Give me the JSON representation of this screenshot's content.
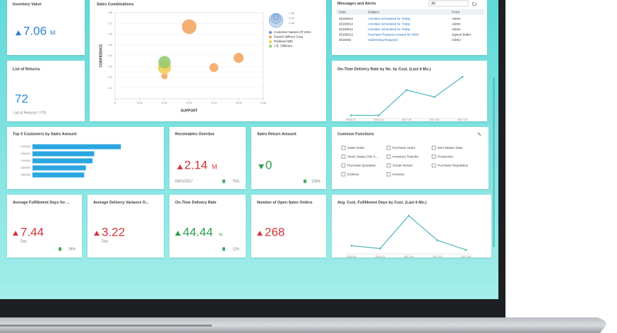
{
  "tiles": {
    "inventory_value": {
      "title": "Inventory Value",
      "value": "7.06",
      "unit": "M"
    },
    "list_of_returns": {
      "title": "List of Returns",
      "value": "72",
      "footer": "List of Returns / YTD"
    },
    "sales_combinations": {
      "title": "Sales Combinations",
      "x_label": "SUPPORT",
      "y_label": "CONFIDENCE",
      "xlim": [
        0,
        0.06
      ],
      "xticks": [
        0,
        0.01,
        0.02,
        0.03,
        0.04,
        0.05,
        0.06
      ],
      "ylim": [
        0,
        0.8
      ],
      "yticks": [
        0.1,
        0.2,
        0.3,
        0.4,
        0.5,
        0.6,
        0.7,
        0.8
      ],
      "size_legend": [
        "7.38",
        "4.92",
        "2.46"
      ],
      "series": [
        {
          "name": "Customer Names Of VIDA",
          "color": "#6f93c9",
          "x": [],
          "values": [],
          "sizes": []
        },
        {
          "name": "Expedi Valhuro Corp",
          "color": "#f3a25c",
          "x": [
            0.03,
            0.04,
            0.05,
            0.02
          ],
          "values": [
            0.67,
            0.29,
            0.38,
            0.21
          ],
          "sizes": [
            7.4,
            4.4,
            5.0,
            3.0
          ]
        },
        {
          "name": "Parkland 990",
          "color": "#f2cb4f",
          "x": [
            0.02
          ],
          "values": [
            0.29
          ],
          "sizes": [
            6.6
          ]
        },
        {
          "name": "J.B. Offshore",
          "color": "#92c96f",
          "x": [
            0.02
          ],
          "values": [
            0.34
          ],
          "sizes": [
            6.2
          ]
        }
      ]
    },
    "messages": {
      "title": "Messages and Alerts",
      "filter": "All",
      "columns": [
        "Date",
        "Subject",
        "From"
      ],
      "rows": [
        [
          "2016/9/12",
          "Activities Scheduled for Today",
          "Admin"
        ],
        [
          "2016/9/12",
          "Activities Scheduled for Today",
          "Admin"
        ],
        [
          "2016/9/12",
          "Activities Scheduled for Today",
          "Admin"
        ],
        [
          "2016/9/12",
          "Purchase Request Created for 0000",
          "Jayson Butler"
        ],
        [
          "2016/9/2",
          "Addressing Required",
          "Admin"
        ]
      ]
    },
    "ontime_chart": {
      "title": "On-Time Delivery Rate by No. by Cust. (Last 6 Mo.)",
      "categories": [
        "2016-11",
        "2016-12",
        "2017-01",
        "2017-02",
        "2017-03"
      ],
      "values": [
        4,
        4,
        62,
        46,
        92
      ],
      "ylim": [
        0,
        100
      ],
      "color": "#4fb6bd"
    },
    "top5": {
      "title": "Top 5 Customers by Sales Amount",
      "categories": [
        "C20000",
        "C30000",
        "C40000",
        "C50000",
        "C60000"
      ],
      "values": [
        106,
        74,
        72,
        64,
        62
      ],
      "xlim": [
        0,
        110
      ],
      "color": "#2aa6e0"
    },
    "receivables": {
      "title": "Receivables Overdue",
      "value": "2.14",
      "unit": "M",
      "date": "09/01/2017",
      "change": "76%"
    },
    "sales_return": {
      "title": "Sales Return Amount",
      "value": "0",
      "change": "100%"
    },
    "common_functions": {
      "title": "Common Functions",
      "items": [
        "Sales Order",
        "Purchase Order",
        "Item Master Data",
        "Stock Status Chk S...",
        "Inventory Transfer",
        "Production",
        "Purchase Quotation",
        "Goods Return",
        "Purchase Requisition",
        "Delivery",
        "Invoices"
      ]
    },
    "avg_fulfillment": {
      "title": "Average Fulfillment Days for ...",
      "value": "7.44",
      "unit": "Day",
      "change": "26%"
    },
    "avg_delivery": {
      "title": "Average Delivery Variance D...",
      "value": "3.22",
      "unit": "Day"
    },
    "ontime_rate": {
      "title": "On-Time Delivery Rate",
      "value": "44.44",
      "unit": "%",
      "change": "11%"
    },
    "open_orders": {
      "title": "Number of Open Sales Orders",
      "value": "268"
    },
    "fulfillment_chart": {
      "title": "Avg. Cust. Fulfillment Days by Cust. (Last 6 Mo.)",
      "categories": [
        "2016-11",
        "2016-12",
        "2017-01",
        "2017-02",
        "2017-03"
      ],
      "values": [
        10,
        6,
        54,
        18,
        4
      ],
      "ylim": [
        0,
        60
      ],
      "color": "#4fb6bd"
    }
  }
}
